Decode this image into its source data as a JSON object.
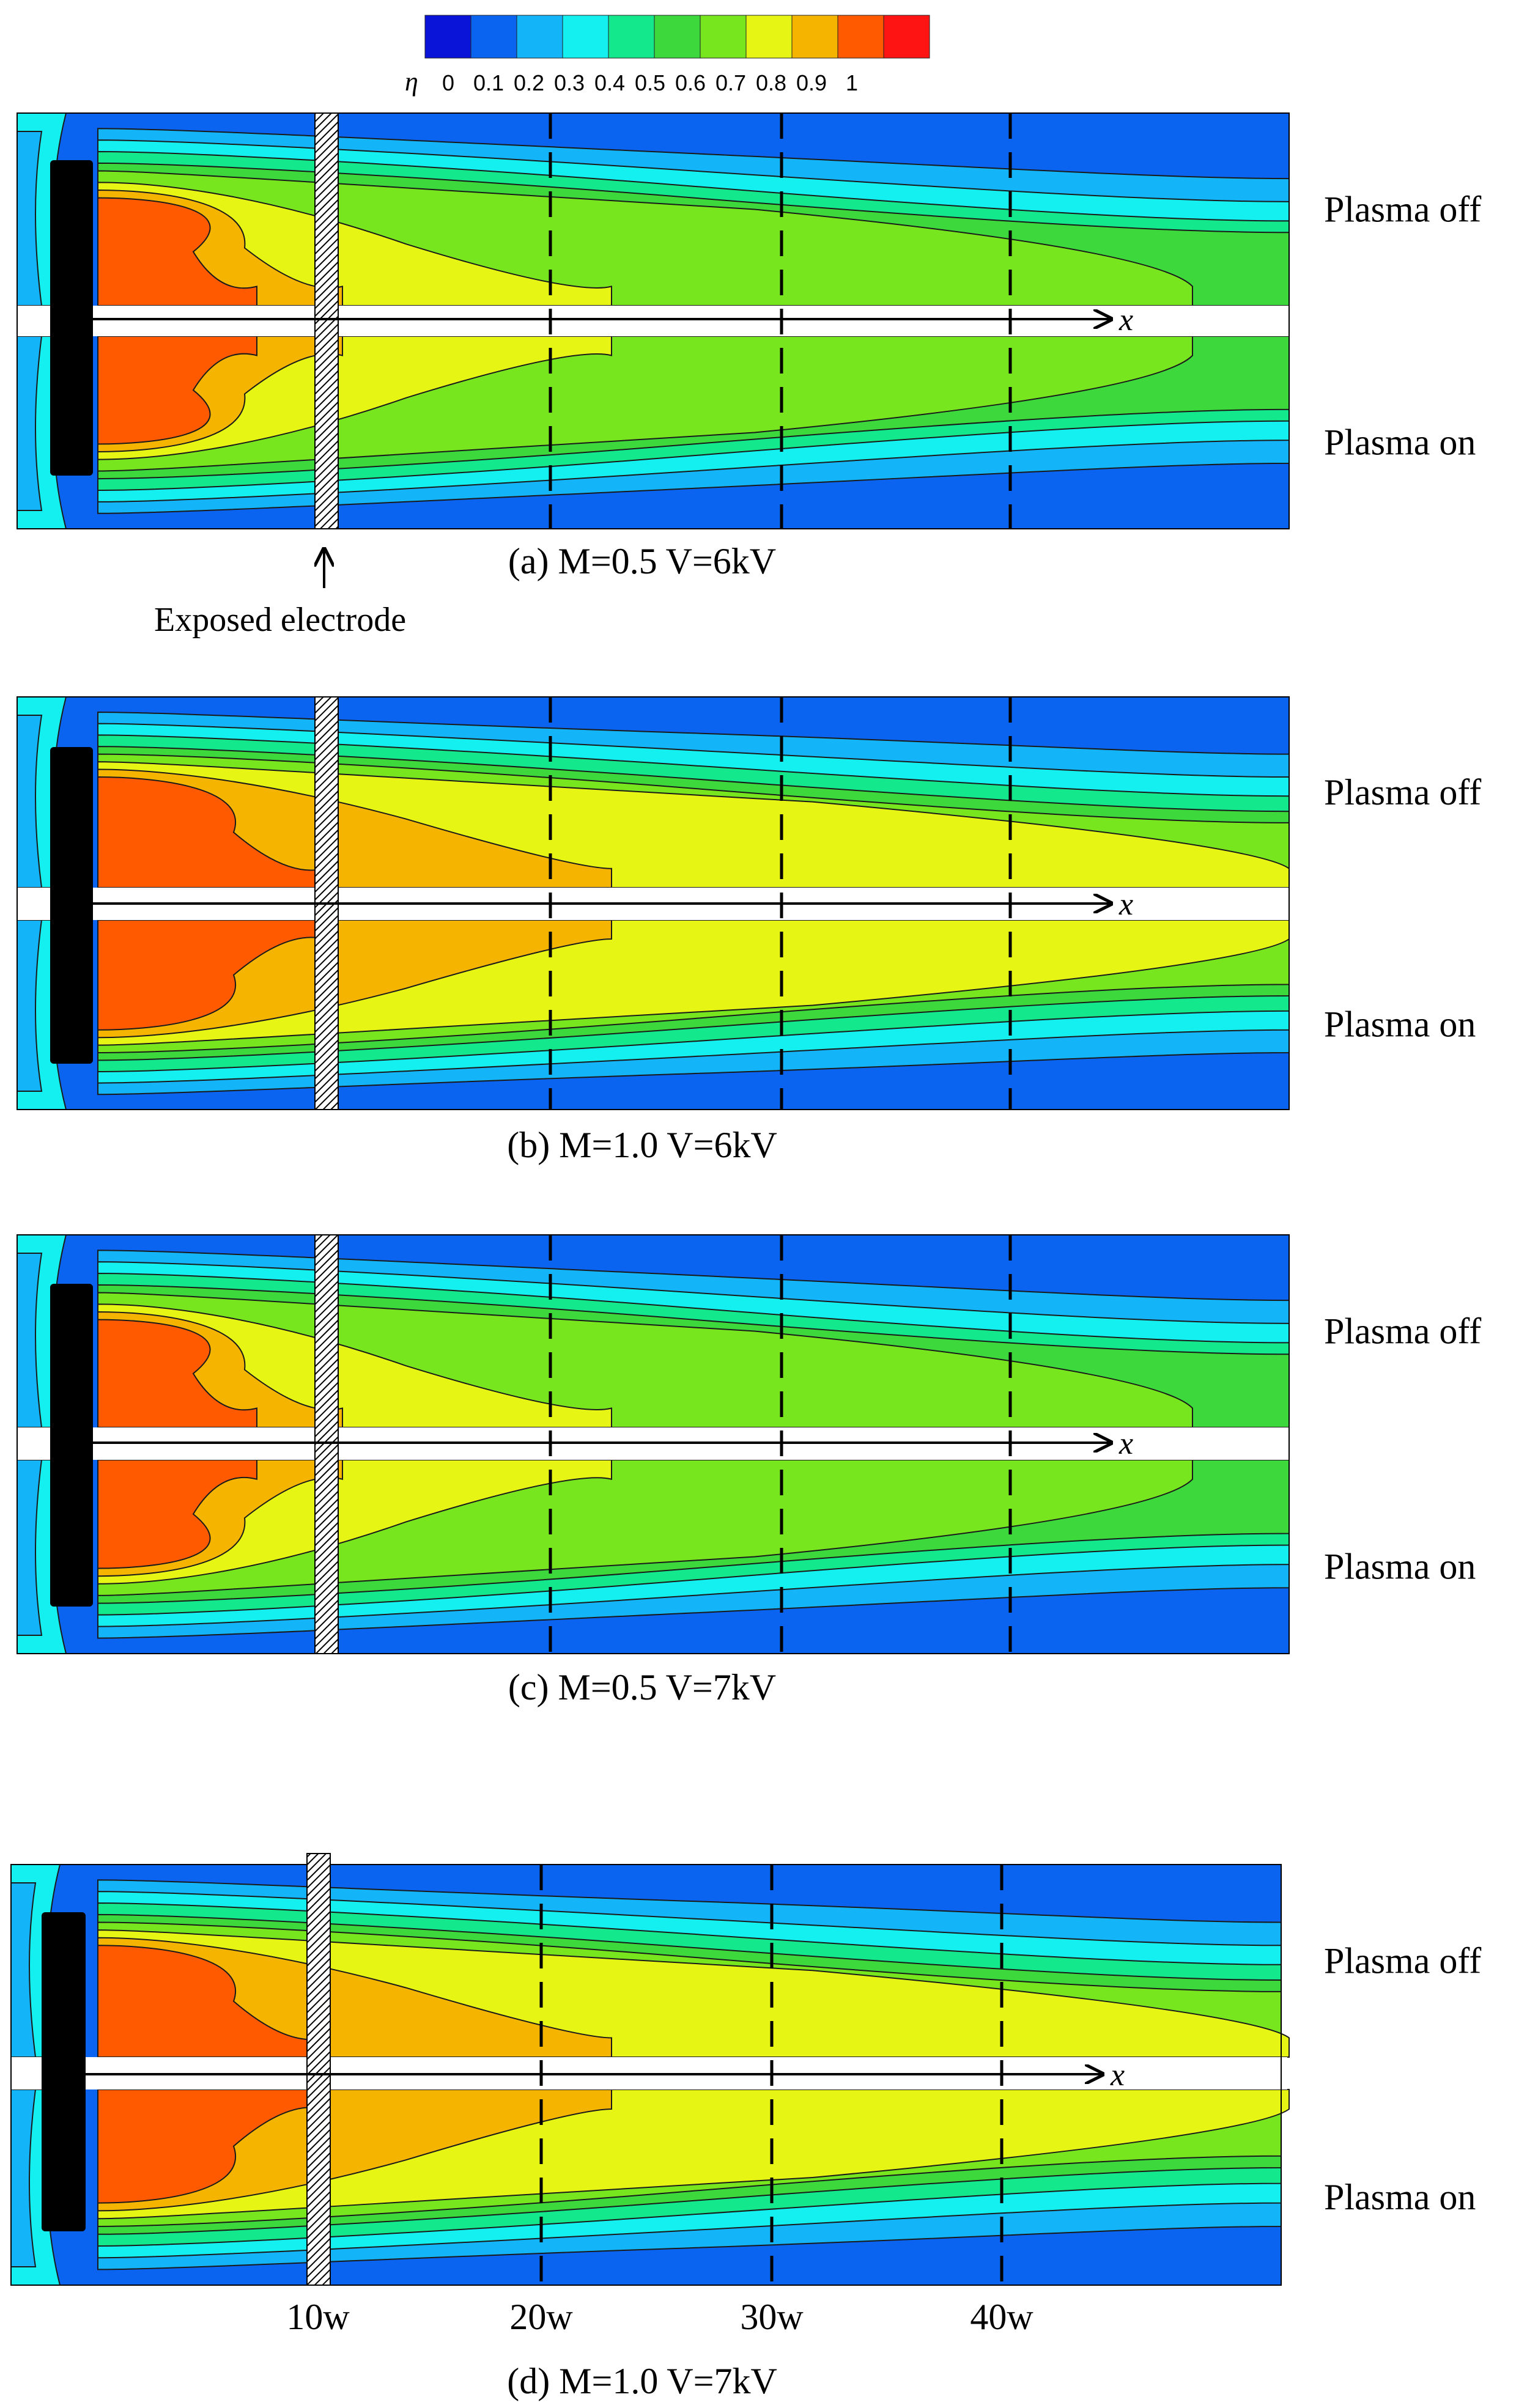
{
  "colorbar": {
    "symbol": "η",
    "tick_labels": [
      "0",
      "0.1",
      "0.2",
      "0.3",
      "0.4",
      "0.5",
      "0.6",
      "0.7",
      "0.8",
      "0.9",
      "1"
    ],
    "colors": [
      "#0a14d8",
      "#0a64f0",
      "#14b4f8",
      "#14f0f0",
      "#14e88c",
      "#3cd83c",
      "#78e61e",
      "#e6f514",
      "#f5b400",
      "#ff5a00",
      "#ff1414"
    ]
  },
  "panels": [
    {
      "caption": "(a) M=0.5  V=6kV",
      "top_label": "Plasma off",
      "bottom_label": "Plasma on",
      "axis_label": "x",
      "case": "M0.5"
    },
    {
      "caption": "(b) M=1.0  V=6kV",
      "top_label": "Plasma off",
      "bottom_label": "Plasma on",
      "axis_label": "x",
      "case": "M1.0"
    },
    {
      "caption": "(c) M=0.5  V=7kV",
      "top_label": "Plasma off",
      "bottom_label": "Plasma on",
      "axis_label": "x",
      "case": "M0.5"
    },
    {
      "caption": "(d) M=1.0  V=7kV",
      "top_label": "Plasma off",
      "bottom_label": "Plasma on",
      "axis_label": "x",
      "case": "M1.0"
    }
  ],
  "electrode_annotation": "Exposed electrode",
  "x_tick_labels": [
    "10w",
    "20w",
    "30w",
    "40w"
  ]
}
